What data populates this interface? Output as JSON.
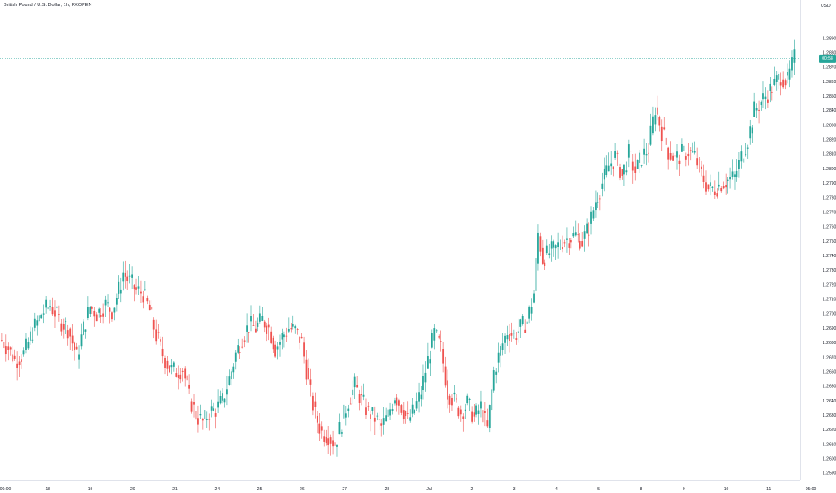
{
  "header": {
    "title": "British Pound / U.S. Dollar, 1h, FXOPEN"
  },
  "price_scale": {
    "currency": "USD"
  },
  "colors": {
    "up": "#26a69a",
    "down": "#ef5350",
    "last_line": "#26a69a",
    "text": "#131722"
  },
  "chart_data": {
    "type": "candlestick",
    "ylim": [
      1.2585,
      1.2915
    ],
    "y_ticks": [
      1.259,
      1.26,
      1.261,
      1.262,
      1.263,
      1.264,
      1.265,
      1.266,
      1.267,
      1.268,
      1.269,
      1.27,
      1.271,
      1.272,
      1.273,
      1.274,
      1.275,
      1.276,
      1.277,
      1.278,
      1.279,
      1.28,
      1.281,
      1.282,
      1.283,
      1.284,
      1.285,
      1.286,
      1.287,
      1.288,
      1.289
    ],
    "y_tick_labels": [
      "1.25900",
      "1.26000",
      "1.26100",
      "1.26200",
      "1.26300",
      "1.26400",
      "1.26500",
      "1.26600",
      "1.26700",
      "1.26800",
      "1.26900",
      "1.27000",
      "1.27100",
      "1.27200",
      "1.27300",
      "1.27400",
      "1.27500",
      "1.27600",
      "1.27700",
      "1.27800",
      "1.27900",
      "1.28000",
      "1.28100",
      "1.28200",
      "1.28300",
      "1.28400",
      "1.28500",
      "1.28600",
      "1.28700",
      "1.28800",
      "1.28900"
    ],
    "x_tick_labels": [
      "09:00",
      "18",
      "19",
      "20",
      "21",
      "24",
      "25",
      "26",
      "27",
      "28",
      "Jul",
      "2",
      "3",
      "4",
      "5",
      "8",
      "9",
      "10",
      "11",
      "05:00"
    ],
    "last_price": 1.28758,
    "last_price_label": "00:58",
    "price_path": [
      [
        0,
        1.2682
      ],
      [
        3,
        1.2676
      ],
      [
        6,
        1.2668
      ],
      [
        10,
        1.2672
      ],
      [
        14,
        1.2688
      ],
      [
        18,
        1.27
      ],
      [
        22,
        1.2706
      ],
      [
        26,
        1.2696
      ],
      [
        30,
        1.269
      ],
      [
        34,
        1.267
      ],
      [
        37,
        1.269
      ],
      [
        40,
        1.2705
      ],
      [
        43,
        1.27
      ],
      [
        47,
        1.2706
      ],
      [
        50,
        1.2702
      ],
      [
        53,
        1.2716
      ],
      [
        55,
        1.2728
      ],
      [
        58,
        1.2722
      ],
      [
        61,
        1.2716
      ],
      [
        64,
        1.2714
      ],
      [
        67,
        1.2702
      ],
      [
        70,
        1.2685
      ],
      [
        73,
        1.2672
      ],
      [
        76,
        1.2662
      ],
      [
        79,
        1.266
      ],
      [
        82,
        1.2662
      ],
      [
        85,
        1.2642
      ],
      [
        88,
        1.263
      ],
      [
        91,
        1.2625
      ],
      [
        94,
        1.2632
      ],
      [
        97,
        1.2634
      ],
      [
        100,
        1.264
      ],
      [
        103,
        1.2655
      ],
      [
        106,
        1.2672
      ],
      [
        109,
        1.2684
      ],
      [
        112,
        1.2692
      ],
      [
        115,
        1.269
      ],
      [
        118,
        1.2696
      ],
      [
        121,
        1.269
      ],
      [
        124,
        1.2676
      ],
      [
        127,
        1.2684
      ],
      [
        130,
        1.269
      ],
      [
        133,
        1.2688
      ],
      [
        136,
        1.268
      ],
      [
        139,
        1.2652
      ],
      [
        142,
        1.263
      ],
      [
        145,
        1.2618
      ],
      [
        148,
        1.2616
      ],
      [
        151,
        1.261
      ],
      [
        154,
        1.2625
      ],
      [
        157,
        1.264
      ],
      [
        160,
        1.265
      ],
      [
        163,
        1.264
      ],
      [
        166,
        1.2632
      ],
      [
        169,
        1.2628
      ],
      [
        172,
        1.2622
      ],
      [
        175,
        1.263
      ],
      [
        178,
        1.2644
      ],
      [
        181,
        1.2636
      ],
      [
        184,
        1.2626
      ],
      [
        187,
        1.2634
      ],
      [
        190,
        1.2646
      ],
      [
        193,
        1.2668
      ],
      [
        196,
        1.2686
      ],
      [
        199,
        1.2676
      ],
      [
        202,
        1.2646
      ],
      [
        205,
        1.264
      ],
      [
        208,
        1.2632
      ],
      [
        211,
        1.2638
      ],
      [
        214,
        1.2628
      ],
      [
        217,
        1.2636
      ],
      [
        220,
        1.262
      ],
      [
        223,
        1.266
      ],
      [
        226,
        1.2675
      ],
      [
        229,
        1.2688
      ],
      [
        232,
        1.2685
      ],
      [
        235,
        1.269
      ],
      [
        238,
        1.2695
      ],
      [
        241,
        1.2714
      ],
      [
        243,
        1.2755
      ],
      [
        245,
        1.2738
      ],
      [
        248,
        1.2742
      ],
      [
        251,
        1.2745
      ],
      [
        254,
        1.275
      ],
      [
        257,
        1.2752
      ],
      [
        260,
        1.2754
      ],
      [
        263,
        1.275
      ],
      [
        266,
        1.276
      ],
      [
        269,
        1.2778
      ],
      [
        272,
        1.279
      ],
      [
        275,
        1.2802
      ],
      [
        278,
        1.2808
      ],
      [
        281,
        1.2795
      ],
      [
        284,
        1.281
      ],
      [
        287,
        1.2798
      ],
      [
        290,
        1.2808
      ],
      [
        293,
        1.2814
      ],
      [
        296,
        1.2842
      ],
      [
        299,
        1.2826
      ],
      [
        302,
        1.2812
      ],
      [
        305,
        1.2806
      ],
      [
        308,
        1.281
      ],
      [
        311,
        1.2812
      ],
      [
        314,
        1.2808
      ],
      [
        317,
        1.2796
      ],
      [
        320,
        1.2786
      ],
      [
        323,
        1.2786
      ],
      [
        326,
        1.279
      ],
      [
        329,
        1.2792
      ],
      [
        332,
        1.2794
      ],
      [
        335,
        1.2808
      ],
      [
        338,
        1.282
      ],
      [
        341,
        1.284
      ],
      [
        344,
        1.2846
      ],
      [
        347,
        1.2852
      ],
      [
        350,
        1.2858
      ],
      [
        353,
        1.2864
      ],
      [
        356,
        1.286
      ],
      [
        359,
        1.2876
      ]
    ]
  }
}
